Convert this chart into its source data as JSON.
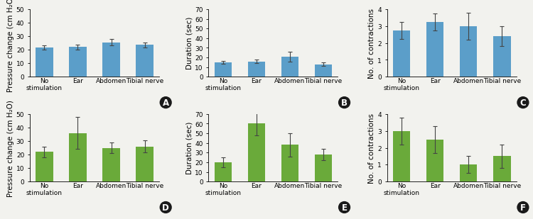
{
  "panels": [
    {
      "label": "A",
      "ylabel": "Pressure change (cm H₂O)",
      "ylim": [
        0,
        50
      ],
      "yticks": [
        0,
        10,
        20,
        30,
        40,
        50
      ],
      "bar_color": "#5b9ec9",
      "values": [
        21.5,
        22.0,
        25.5,
        23.5
      ],
      "errors": [
        1.5,
        2.0,
        2.5,
        2.0
      ],
      "categories": [
        "No\nstimulation",
        "Ear",
        "Abdomen",
        "Tibial nerve"
      ],
      "row": 0
    },
    {
      "label": "B",
      "ylabel": "Duration (sec)",
      "ylim": [
        0,
        70
      ],
      "yticks": [
        0,
        10,
        20,
        30,
        40,
        50,
        60,
        70
      ],
      "bar_color": "#5b9ec9",
      "values": [
        15.0,
        16.0,
        21.0,
        13.0
      ],
      "errors": [
        1.5,
        2.0,
        5.0,
        2.0
      ],
      "categories": [
        "No\nstimulation",
        "Ear",
        "Abdomen",
        "Tibial nerve"
      ],
      "row": 0
    },
    {
      "label": "C",
      "ylabel": "No. of contractions",
      "ylim": [
        0,
        4
      ],
      "yticks": [
        0,
        1,
        2,
        3,
        4
      ],
      "bar_color": "#5b9ec9",
      "values": [
        2.75,
        3.25,
        3.0,
        2.4
      ],
      "errors": [
        0.5,
        0.5,
        0.8,
        0.6
      ],
      "categories": [
        "No\nstimulation",
        "Ear",
        "Abdomen",
        "Tibial nerve"
      ],
      "row": 0
    },
    {
      "label": "D",
      "ylabel": "Pressure change (cm H₂O)",
      "ylim": [
        0,
        50
      ],
      "yticks": [
        0,
        10,
        20,
        30,
        40,
        50
      ],
      "bar_color": "#6aaa3a",
      "values": [
        22.0,
        36.0,
        25.0,
        26.0
      ],
      "errors": [
        4.0,
        12.0,
        4.0,
        4.5
      ],
      "categories": [
        "No\nstimulation",
        "Ear",
        "Abdomen",
        "Tibial nerve"
      ],
      "row": 1
    },
    {
      "label": "E",
      "ylabel": "Duration (sec)",
      "ylim": [
        0,
        70
      ],
      "yticks": [
        0,
        10,
        20,
        30,
        40,
        50,
        60,
        70
      ],
      "bar_color": "#6aaa3a",
      "values": [
        20.0,
        60.0,
        38.0,
        28.0
      ],
      "errors": [
        5.0,
        12.0,
        12.0,
        6.0
      ],
      "categories": [
        "No\nstimulation",
        "Ear",
        "Abdomen",
        "Tibial nerve"
      ],
      "row": 1
    },
    {
      "label": "F",
      "ylabel": "No. of contractions",
      "ylim": [
        0,
        4
      ],
      "yticks": [
        0,
        1,
        2,
        3,
        4
      ],
      "bar_color": "#6aaa3a",
      "values": [
        3.0,
        2.5,
        1.0,
        1.5
      ],
      "errors": [
        0.8,
        0.8,
        0.5,
        0.7
      ],
      "categories": [
        "No\nstimulation",
        "Ear",
        "Abdomen",
        "Tibial nerve"
      ],
      "row": 1
    }
  ],
  "background_color": "#f2f2ee",
  "tick_fontsize": 6.5,
  "ylabel_fontsize": 7.5,
  "bar_width": 0.52,
  "label_fontsize": 8.5
}
